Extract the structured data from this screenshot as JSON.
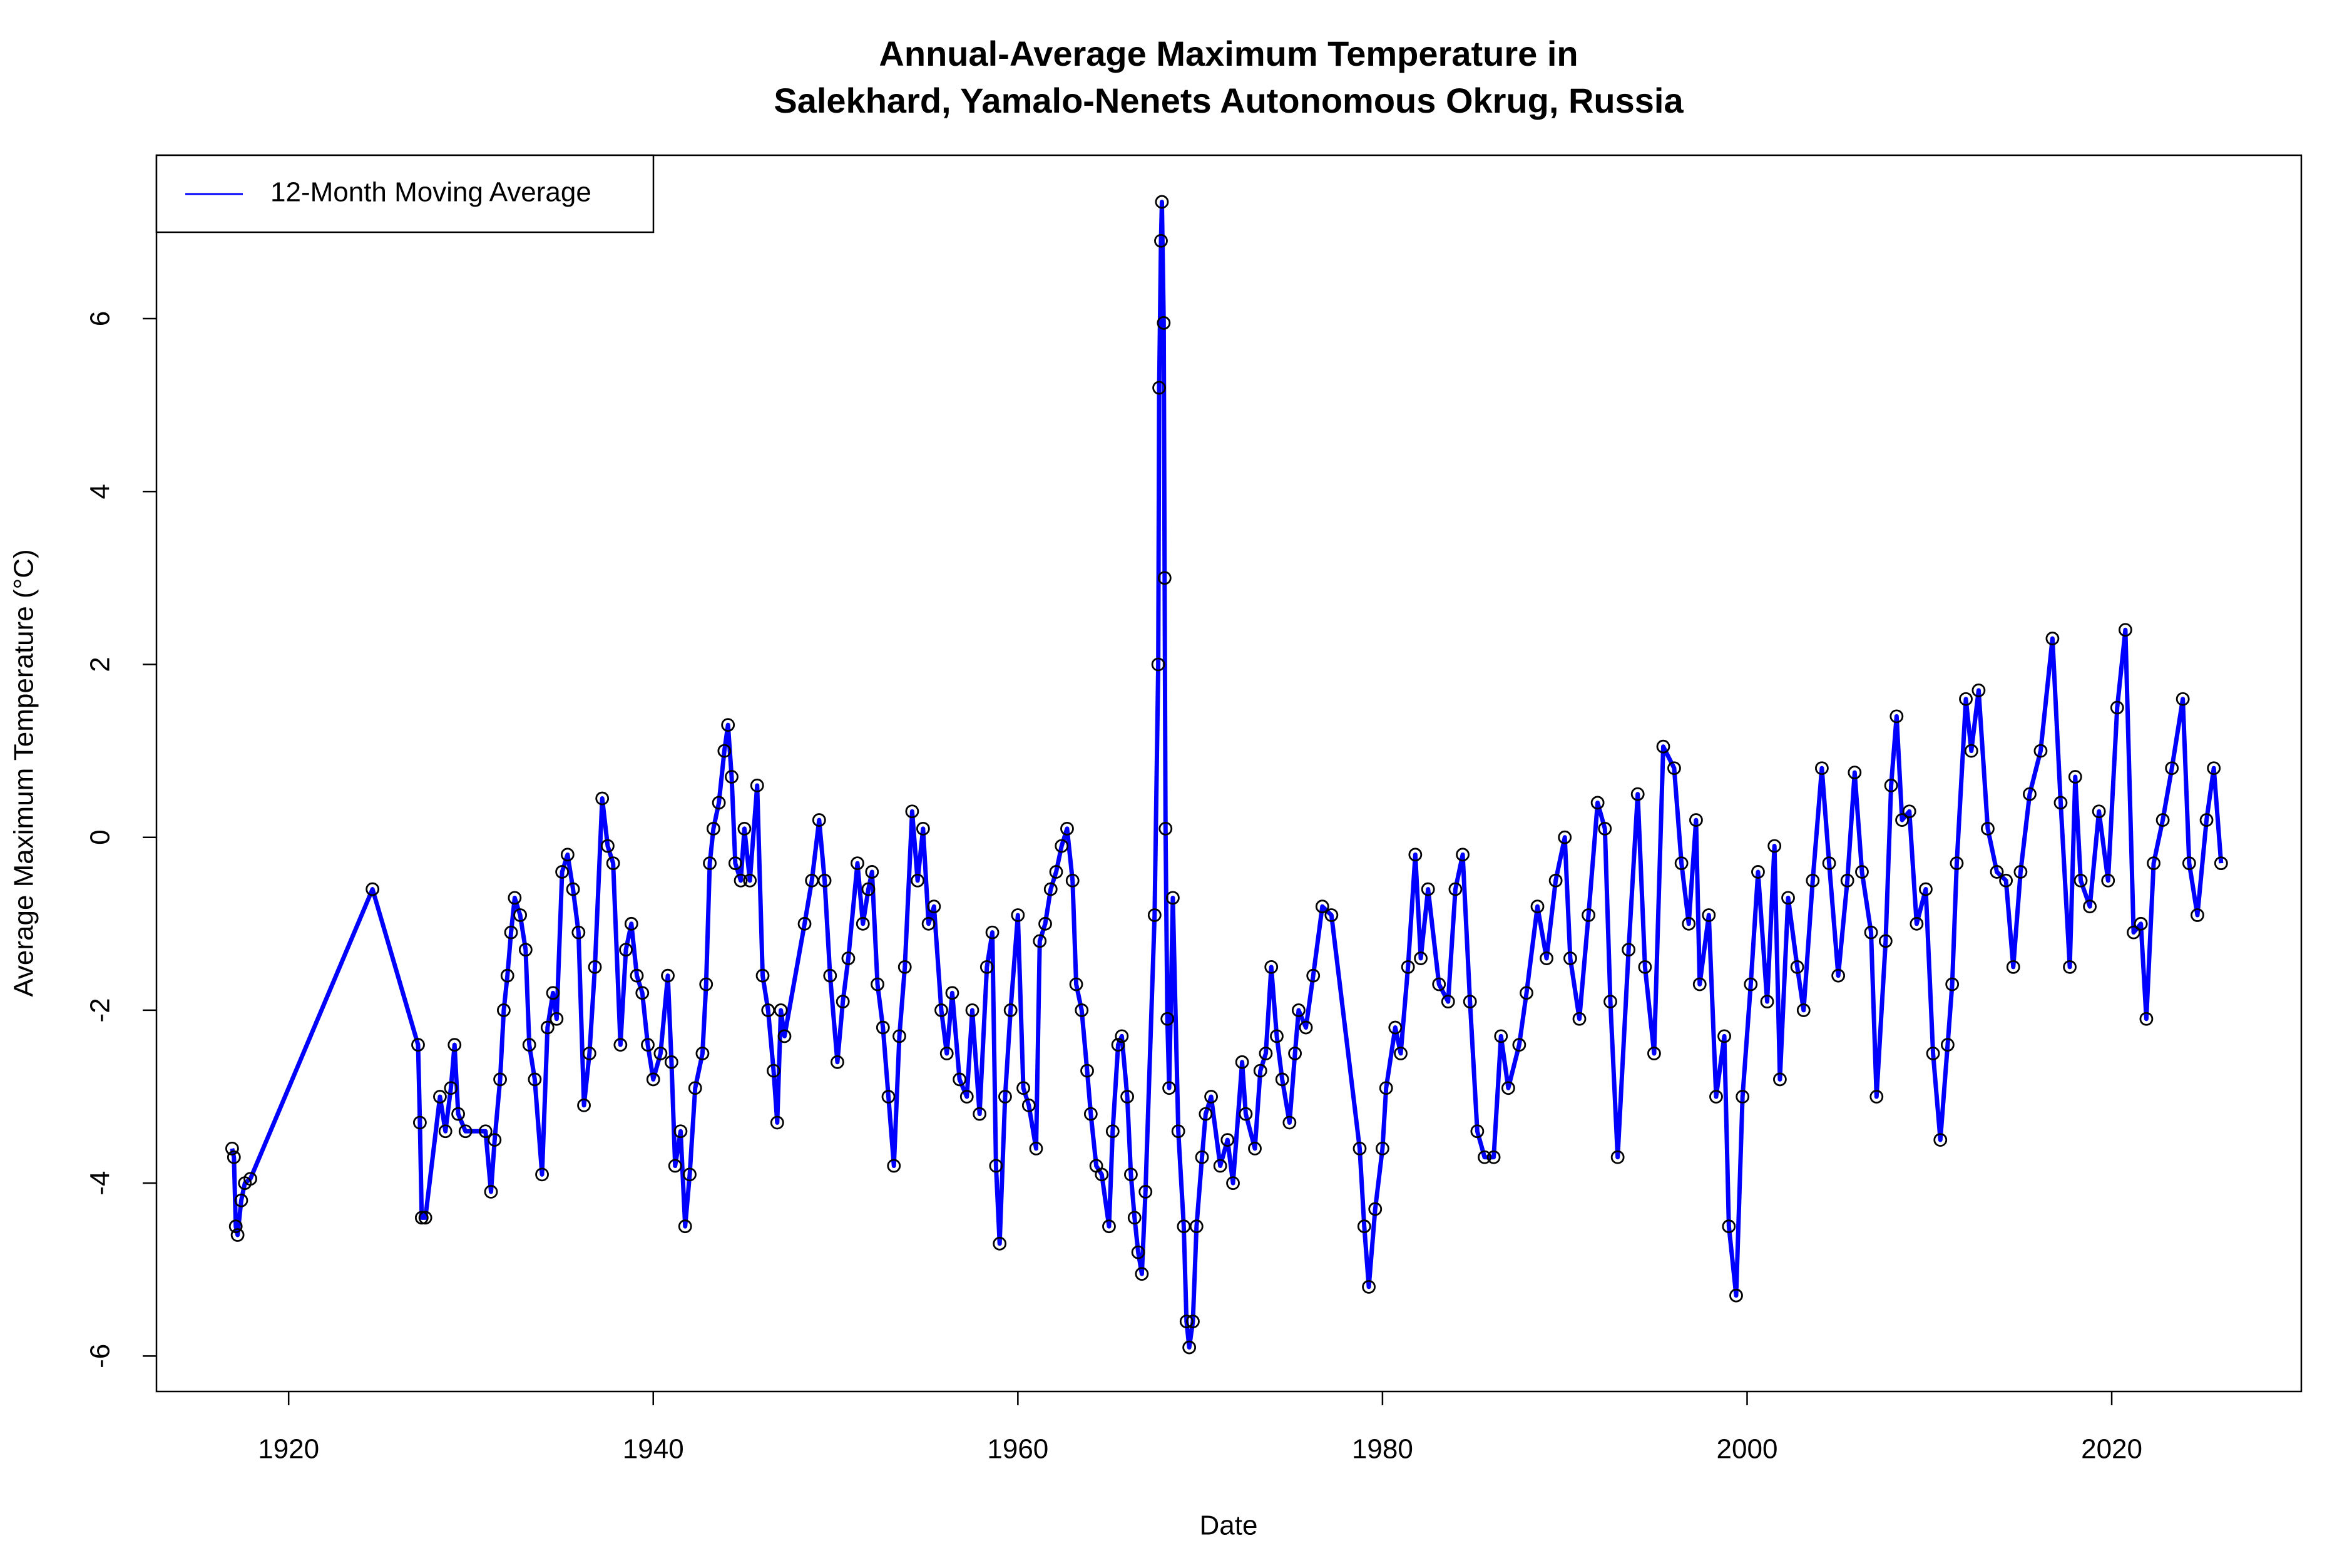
{
  "chart_data": {
    "type": "line",
    "title": [
      "Annual-Average Maximum Temperature in",
      "Salekhard, Yamalo-Nenets Autonomous Okrug, Russia"
    ],
    "x_label": "Date",
    "y_label": "Average Maximum Temperature (°C)",
    "xlim": [
      1912.75,
      2030.4
    ],
    "ylim": [
      -6.41,
      7.89
    ],
    "xticks": [
      1920,
      1940,
      1960,
      1980,
      2000,
      2020
    ],
    "yticks": [
      -6,
      -4,
      -2,
      0,
      2,
      4,
      6
    ],
    "legend": "top-left",
    "marker_color": "#000000",
    "x": [
      1916.9,
      1917.0,
      1917.1,
      1917.2,
      1917.4,
      1917.6,
      1917.9,
      1924.6,
      1927.1,
      1927.2,
      1927.3,
      1927.5,
      1928.3,
      1928.6,
      1928.9,
      1929.1,
      1929.3,
      1929.7,
      1930.8,
      1931.1,
      1931.3,
      1931.6,
      1931.8,
      1932.0,
      1932.2,
      1932.4,
      1932.7,
      1933.0,
      1933.2,
      1933.5,
      1933.9,
      1934.2,
      1934.5,
      1934.7,
      1935.0,
      1935.3,
      1935.6,
      1935.9,
      1936.2,
      1936.5,
      1936.8,
      1937.2,
      1937.5,
      1937.8,
      1938.2,
      1938.5,
      1938.8,
      1939.1,
      1939.4,
      1939.7,
      1940.0,
      1940.4,
      1940.8,
      1941.0,
      1941.2,
      1941.5,
      1941.75,
      1942.0,
      1942.3,
      1942.7,
      1942.9,
      1943.1,
      1943.3,
      1943.6,
      1943.9,
      1944.1,
      1944.3,
      1944.5,
      1944.8,
      1945.0,
      1945.3,
      1945.7,
      1946.0,
      1946.3,
      1946.6,
      1946.8,
      1947.0,
      1947.2,
      1948.3,
      1948.7,
      1949.1,
      1949.4,
      1949.7,
      1950.1,
      1950.4,
      1950.7,
      1951.2,
      1951.5,
      1951.8,
      1952.0,
      1952.3,
      1952.6,
      1952.9,
      1953.2,
      1953.5,
      1953.8,
      1954.2,
      1954.5,
      1954.8,
      1955.1,
      1955.4,
      1955.8,
      1956.1,
      1956.4,
      1956.8,
      1957.2,
      1957.5,
      1957.9,
      1958.3,
      1958.6,
      1958.8,
      1959.0,
      1959.3,
      1959.6,
      1960.0,
      1960.3,
      1960.6,
      1961.0,
      1961.2,
      1961.5,
      1961.8,
      1962.1,
      1962.4,
      1962.7,
      1963.0,
      1963.2,
      1963.5,
      1963.8,
      1964.0,
      1964.3,
      1964.6,
      1965.0,
      1965.2,
      1965.5,
      1965.7,
      1966.0,
      1966.2,
      1966.4,
      1966.6,
      1966.8,
      1967.0,
      1967.5,
      1967.7,
      1967.75,
      1967.85,
      1967.9,
      1968.0,
      1968.05,
      1968.1,
      1968.2,
      1968.3,
      1968.5,
      1968.8,
      1969.1,
      1969.25,
      1969.4,
      1969.6,
      1969.8,
      1970.1,
      1970.3,
      1970.6,
      1971.1,
      1971.5,
      1971.8,
      1972.3,
      1972.5,
      1973.0,
      1973.3,
      1973.6,
      1973.9,
      1974.2,
      1974.5,
      1974.9,
      1975.2,
      1975.4,
      1975.8,
      1976.2,
      1976.7,
      1977.2,
      1978.75,
      1979.0,
      1979.25,
      1979.6,
      1980.0,
      1980.2,
      1980.7,
      1981.0,
      1981.4,
      1981.8,
      1982.1,
      1982.5,
      1983.1,
      1983.6,
      1984.0,
      1984.4,
      1984.8,
      1985.2,
      1985.6,
      1986.1,
      1986.5,
      1986.9,
      1987.5,
      1987.9,
      1988.5,
      1989.0,
      1989.5,
      1990.0,
      1990.3,
      1990.8,
      1991.3,
      1991.8,
      1992.2,
      1992.5,
      1992.9,
      1993.5,
      1994.0,
      1994.4,
      1994.9,
      1995.4,
      1996.0,
      1996.4,
      1996.8,
      1997.2,
      1997.4,
      1997.9,
      1998.3,
      1998.75,
      1999.0,
      1999.4,
      1999.75,
      2000.2,
      2000.6,
      2001.1,
      2001.5,
      2001.8,
      2002.25,
      2002.75,
      2003.1,
      2003.6,
      2004.1,
      2004.5,
      2005.0,
      2005.5,
      2005.9,
      2006.3,
      2006.8,
      2007.1,
      2007.6,
      2007.9,
      2008.2,
      2008.5,
      2008.9,
      2009.3,
      2009.8,
      2010.2,
      2010.6,
      2011.0,
      2011.25,
      2011.5,
      2012.0,
      2012.3,
      2012.7,
      2013.2,
      2013.7,
      2014.2,
      2014.6,
      2015.0,
      2015.5,
      2016.1,
      2016.75,
      2017.2,
      2017.7,
      2018.0,
      2018.3,
      2018.8,
      2019.3,
      2019.8,
      2020.3,
      2020.75,
      2021.2,
      2021.6,
      2021.9,
      2022.3,
      2022.8,
      2023.3,
      2023.9,
      2024.25,
      2024.7,
      2025.2,
      2025.6,
      2026.0
    ],
    "series": [
      {
        "name": "12-Month Moving Average",
        "color": "#0000ff",
        "values": [
          -3.6,
          -3.7,
          -4.5,
          -4.6,
          -4.2,
          -4.0,
          -3.95,
          -0.6,
          -2.4,
          -3.3,
          -4.4,
          -4.4,
          -3.0,
          -3.4,
          -2.9,
          -2.4,
          -3.2,
          -3.4,
          -3.4,
          -4.1,
          -3.5,
          -2.8,
          -2.0,
          -1.6,
          -1.1,
          -0.7,
          -0.9,
          -1.3,
          -2.4,
          -2.8,
          -3.9,
          -2.2,
          -1.8,
          -2.1,
          -0.4,
          -0.2,
          -0.6,
          -1.1,
          -3.1,
          -2.5,
          -1.5,
          0.45,
          -0.1,
          -0.3,
          -2.4,
          -1.3,
          -1.0,
          -1.6,
          -1.8,
          -2.4,
          -2.8,
          -2.5,
          -1.6,
          -2.6,
          -3.8,
          -3.4,
          -4.5,
          -3.9,
          -2.9,
          -2.5,
          -1.7,
          -0.3,
          0.1,
          0.4,
          1.0,
          1.3,
          0.7,
          -0.3,
          -0.5,
          0.1,
          -0.5,
          0.6,
          -1.6,
          -2.0,
          -2.7,
          -3.3,
          -2.0,
          -2.3,
          -1.0,
          -0.5,
          0.2,
          -0.5,
          -1.6,
          -2.6,
          -1.9,
          -1.4,
          -0.3,
          -1.0,
          -0.6,
          -0.4,
          -1.7,
          -2.2,
          -3.0,
          -3.8,
          -2.3,
          -1.5,
          0.3,
          -0.5,
          0.1,
          -1.0,
          -0.8,
          -2.0,
          -2.5,
          -1.8,
          -2.8,
          -3.0,
          -2.0,
          -3.2,
          -1.5,
          -1.1,
          -3.8,
          -4.7,
          -3.0,
          -2.0,
          -0.9,
          -2.9,
          -3.1,
          -3.6,
          -1.2,
          -1.0,
          -0.6,
          -0.4,
          -0.1,
          0.1,
          -0.5,
          -1.7,
          -2.0,
          -2.7,
          -3.2,
          -3.8,
          -3.9,
          -4.5,
          -3.4,
          -2.4,
          -2.3,
          -3.0,
          -3.9,
          -4.4,
          -4.8,
          -5.05,
          -4.1,
          -0.9,
          2.0,
          5.2,
          6.9,
          7.35,
          5.95,
          3.0,
          0.1,
          -2.1,
          -2.9,
          -0.7,
          -3.4,
          -4.5,
          -5.6,
          -5.9,
          -5.6,
          -4.5,
          -3.7,
          -3.2,
          -3.0,
          -3.8,
          -3.5,
          -4.0,
          -2.6,
          -3.2,
          -3.6,
          -2.7,
          -2.5,
          -1.5,
          -2.3,
          -2.8,
          -3.3,
          -2.5,
          -2.0,
          -2.2,
          -1.6,
          -0.8,
          -0.9,
          -3.6,
          -4.5,
          -5.2,
          -4.3,
          -3.6,
          -2.9,
          -2.2,
          -2.5,
          -1.5,
          -0.2,
          -1.4,
          -0.6,
          -1.7,
          -1.9,
          -0.6,
          -0.2,
          -1.9,
          -3.4,
          -3.7,
          -3.7,
          -2.3,
          -2.9,
          -2.4,
          -1.8,
          -0.8,
          -1.4,
          -0.5,
          0.0,
          -1.4,
          -2.1,
          -0.9,
          0.4,
          0.1,
          -1.9,
          -3.7,
          -1.3,
          0.5,
          -1.5,
          -2.5,
          1.05,
          0.8,
          -0.3,
          -1.0,
          0.2,
          -1.7,
          -0.9,
          -3.0,
          -2.3,
          -4.5,
          -5.3,
          -3.0,
          -1.7,
          -0.4,
          -1.9,
          -0.1,
          -2.8,
          -0.7,
          -1.5,
          -2.0,
          -0.5,
          0.8,
          -0.3,
          -1.6,
          -0.5,
          0.75,
          -0.4,
          -1.1,
          -3.0,
          -1.2,
          0.6,
          1.4,
          0.2,
          0.3,
          -1.0,
          -0.6,
          -2.5,
          -3.5,
          -2.4,
          -1.7,
          -0.3,
          1.6,
          1.0,
          1.7,
          0.1,
          -0.4,
          -0.5,
          -1.5,
          -0.4,
          0.5,
          1.0,
          2.3,
          0.4,
          -1.5,
          0.7,
          -0.5,
          -0.8,
          0.3,
          -0.5,
          1.5,
          2.4,
          -1.1,
          -1.0,
          -2.1,
          -0.3,
          0.2,
          0.8,
          1.6,
          -0.3,
          -0.9,
          0.2,
          0.8,
          -0.3
        ]
      }
    ]
  }
}
